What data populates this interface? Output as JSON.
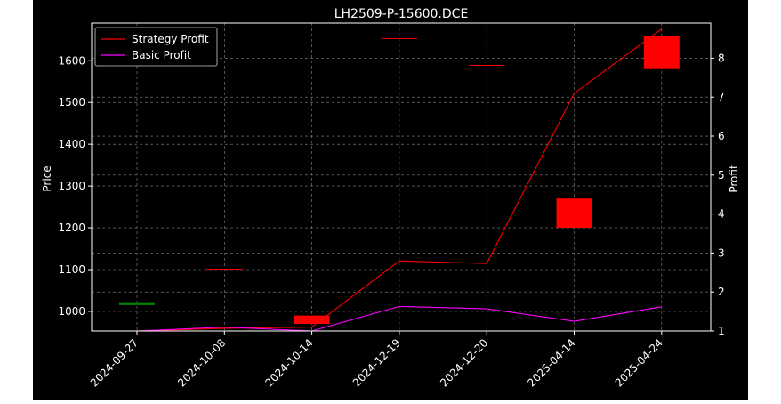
{
  "chart_data": {
    "type": "candlestick-with-lines",
    "title": "LH2509-P-15600.DCE",
    "ylabel": "Price",
    "y2label": "Profit",
    "categories": [
      "2024-09-27",
      "2024-10-08",
      "2024-10-14",
      "2024-12-19",
      "2024-12-20",
      "2025-04-14",
      "2025-04-24"
    ],
    "ylim": [
      953,
      1690
    ],
    "y2lim": [
      1,
      8.9
    ],
    "yticks": [
      1000,
      1100,
      1200,
      1300,
      1400,
      1500,
      1600
    ],
    "y2ticks": [
      1,
      2,
      3,
      4,
      5,
      6,
      7,
      8
    ],
    "grid": true,
    "legend_position": "top-left",
    "candles": [
      {
        "date": "2024-09-27",
        "open": 1015,
        "close": 1022,
        "color": "#008000"
      },
      {
        "date": "2024-10-08",
        "open": 1101,
        "close": 1102,
        "color": "#ff0000"
      },
      {
        "date": "2024-10-14",
        "open": 990,
        "close": 970,
        "color": "#ff0000"
      },
      {
        "date": "2024-12-19",
        "open": 1654,
        "close": 1653,
        "color": "#ff0000"
      },
      {
        "date": "2024-12-20",
        "open": 1590,
        "close": 1589,
        "color": "#ff0000"
      },
      {
        "date": "2025-04-14",
        "open": 1270,
        "close": 1200,
        "color": "#ff0000"
      },
      {
        "date": "2025-04-24",
        "open": 1658,
        "close": 1582,
        "color": "#ff0000"
      }
    ],
    "series": [
      {
        "name": "Strategy Profit",
        "axis": "right",
        "color": "#ff0000",
        "values": [
          1.0,
          1.07,
          1.1,
          2.8,
          2.73,
          7.1,
          8.75
        ]
      },
      {
        "name": "Basic Profit",
        "axis": "right",
        "color": "#ff00ff",
        "values": [
          1.0,
          1.1,
          1.0,
          1.63,
          1.57,
          1.25,
          1.62
        ]
      }
    ]
  }
}
